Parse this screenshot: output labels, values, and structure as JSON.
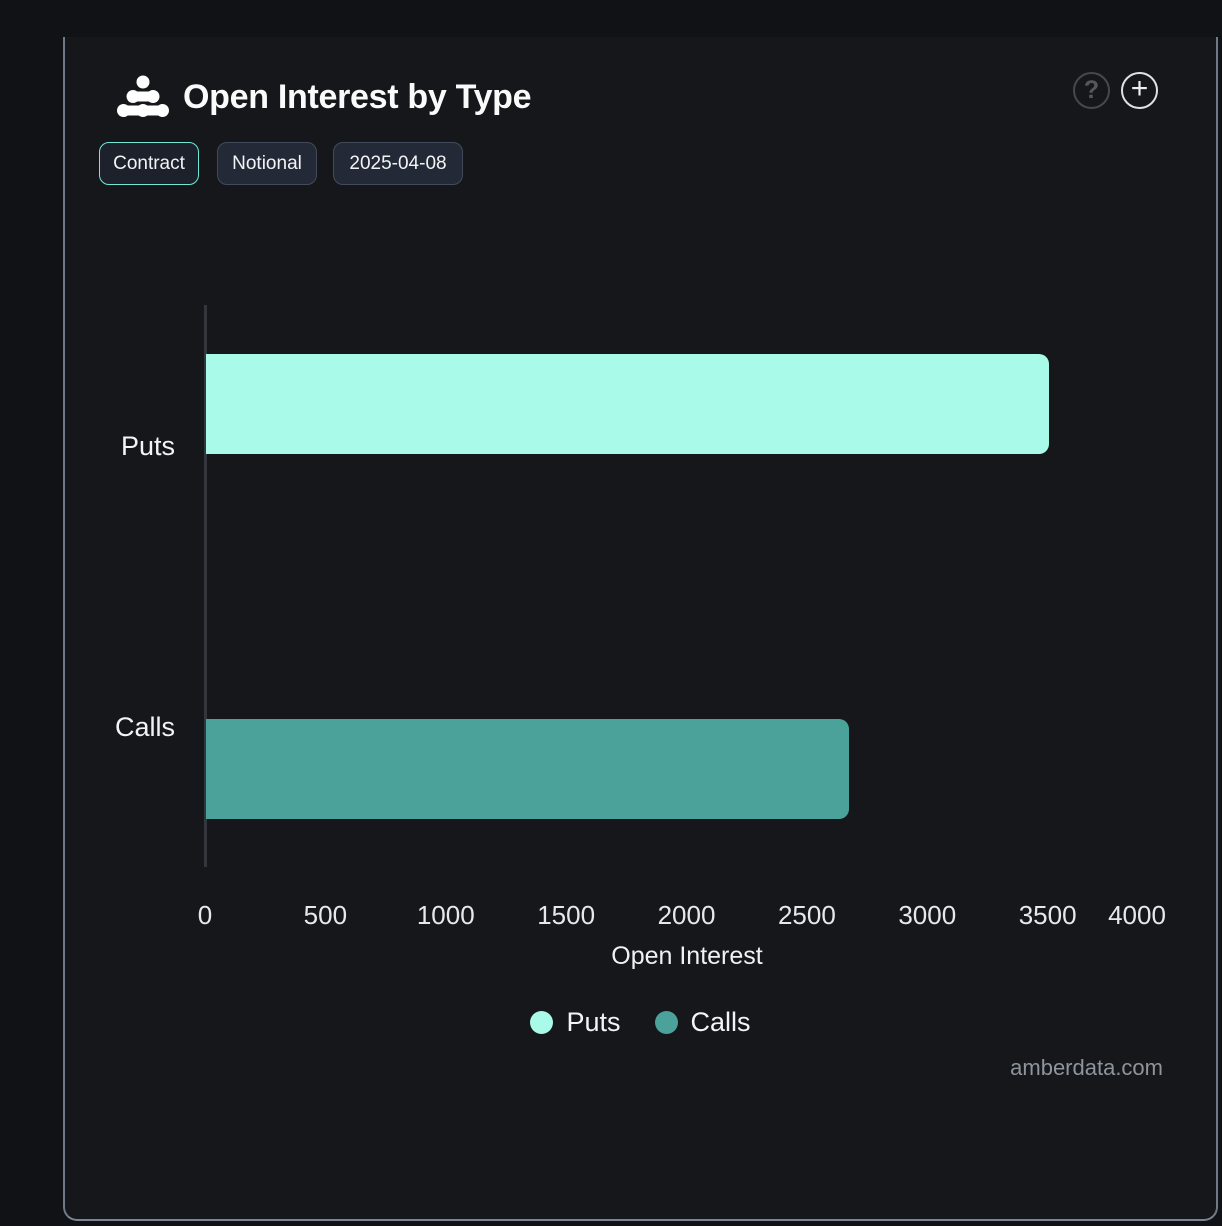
{
  "header": {
    "title": "Open Interest by Type",
    "help_glyph": "?",
    "add_glyph": "+"
  },
  "toolbar": {
    "buttons": [
      {
        "label": "Contract",
        "active": true
      },
      {
        "label": "Notional",
        "active": false
      },
      {
        "label": "2025-04-08",
        "active": false
      }
    ]
  },
  "chart_data": {
    "type": "bar",
    "orientation": "horizontal",
    "title": "Open Interest by Type",
    "categories": [
      "Puts",
      "Calls"
    ],
    "series": [
      {
        "name": "Puts",
        "value": 3500,
        "color": "#a9fae9"
      },
      {
        "name": "Calls",
        "value": 2670,
        "color": "#4ba29a"
      }
    ],
    "xlabel": "Open Interest",
    "x_ticks": [
      0,
      500,
      1000,
      1500,
      2000,
      2500,
      3000,
      3500,
      4000
    ],
    "xlim": [
      0,
      4000
    ],
    "grid": false,
    "legend_position": "bottom",
    "legend": [
      {
        "label": "Puts",
        "color": "#a9fae9"
      },
      {
        "label": "Calls",
        "color": "#4ba29a"
      }
    ]
  },
  "footer": {
    "watermark": "amberdata.com"
  }
}
